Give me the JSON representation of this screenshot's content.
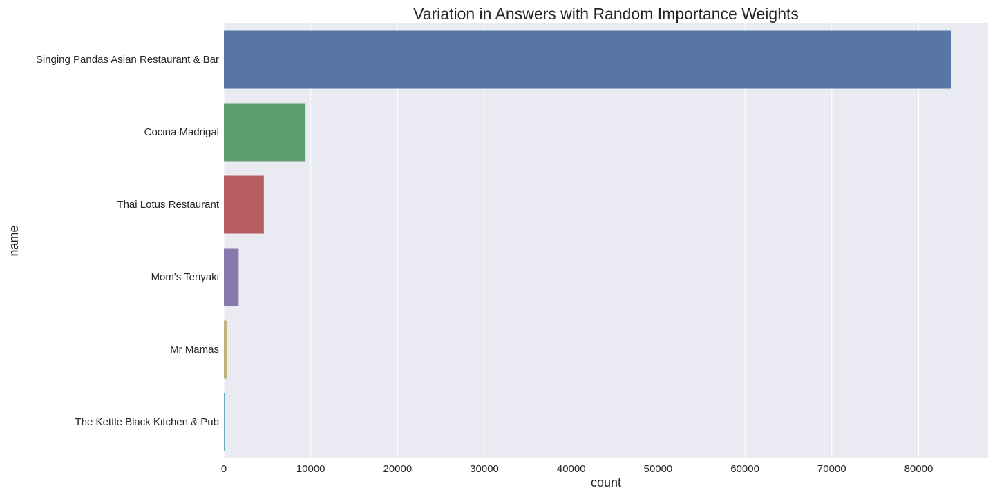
{
  "chart_data": {
    "type": "bar",
    "orientation": "horizontal",
    "title": "Variation in Answers with Random Importance Weights",
    "xlabel": "count",
    "ylabel": "name",
    "xlim": [
      0,
      88000
    ],
    "xticks": [
      0,
      10000,
      20000,
      30000,
      40000,
      50000,
      60000,
      70000,
      80000
    ],
    "xtick_labels": [
      "0",
      "10000",
      "20000",
      "30000",
      "40000",
      "50000",
      "60000",
      "70000",
      "80000"
    ],
    "grid": true,
    "categories": [
      "Singing Pandas Asian Restaurant & Bar",
      "Cocina Madrigal",
      "Thai Lotus Restaurant",
      "Mom's Teriyaki",
      "Mr Mamas",
      "The Kettle Black Kitchen & Pub"
    ],
    "values": [
      83700,
      9400,
      4600,
      1700,
      380,
      90
    ],
    "colors": [
      "#5875a4",
      "#5f9e6e",
      "#b55d60",
      "#857aab",
      "#c1b37f",
      "#6aa9c1"
    ],
    "background_color": "#eaeaf2"
  }
}
